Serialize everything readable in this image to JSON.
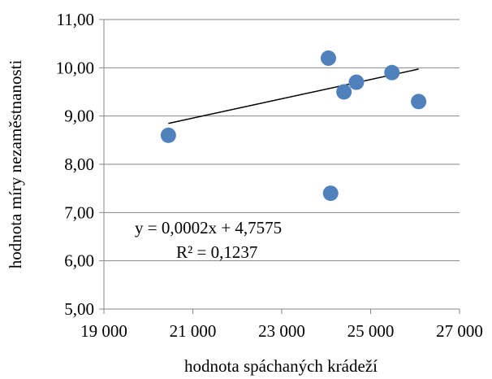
{
  "chart_data": {
    "type": "scatter",
    "xlabel": "hodnota spáchaných krádeží",
    "ylabel": "hodnota míry nezaměstnanosti",
    "xlim": [
      19000,
      27000
    ],
    "ylim": [
      5,
      11
    ],
    "xticks": [
      "19 000",
      "21 000",
      "23 000",
      "25 000",
      "27 000"
    ],
    "yticks": [
      "5,00",
      "6,00",
      "7,00",
      "8,00",
      "9,00",
      "10,00",
      "11,00"
    ],
    "grid": "horizontal",
    "points": [
      {
        "x": 20450,
        "y": 8.6
      },
      {
        "x": 24050,
        "y": 10.2
      },
      {
        "x": 24100,
        "y": 7.4
      },
      {
        "x": 24400,
        "y": 9.5
      },
      {
        "x": 24680,
        "y": 9.7
      },
      {
        "x": 25480,
        "y": 9.9
      },
      {
        "x": 26080,
        "y": 9.3
      }
    ],
    "trendline": {
      "slope": 0.0002,
      "intercept": 4.7575,
      "x_range": [
        20450,
        26080
      ]
    },
    "annotations": {
      "equation": "y = 0,0002x + 4,7575",
      "r_squared": "R² = 0,1237"
    },
    "marker_color": "#4F81BD",
    "trendline_color": "#000000"
  }
}
